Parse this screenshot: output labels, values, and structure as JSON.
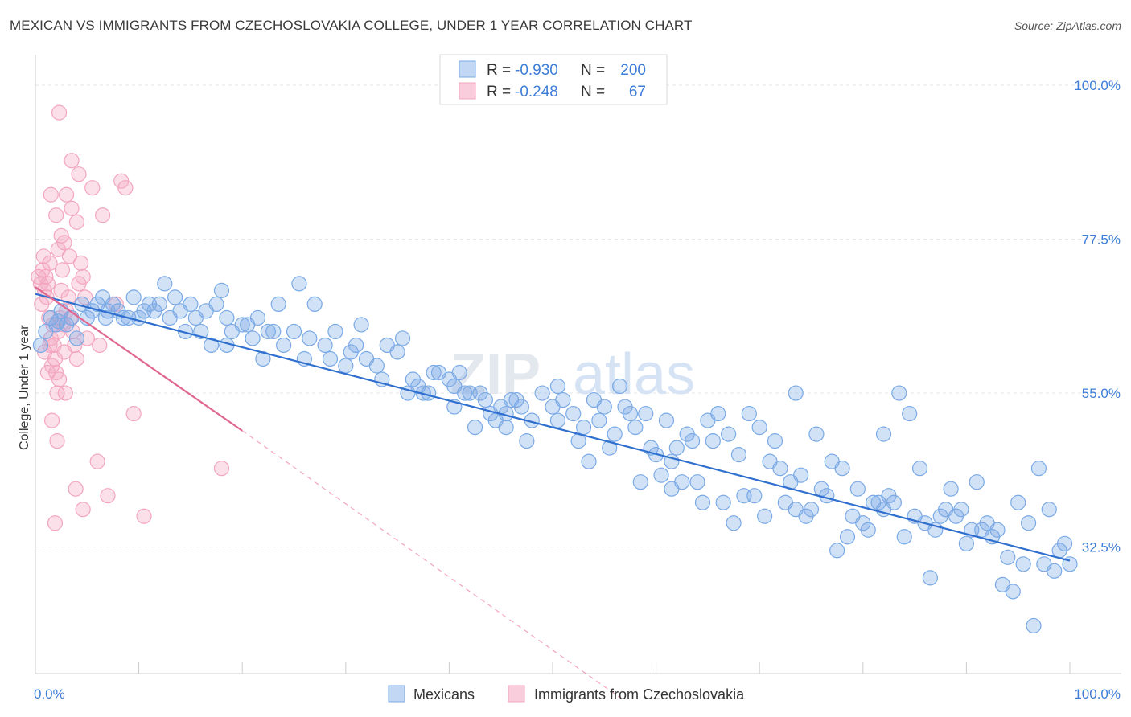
{
  "title": "MEXICAN VS IMMIGRANTS FROM CZECHOSLOVAKIA COLLEGE, UNDER 1 YEAR CORRELATION CHART",
  "source": "Source: ZipAtlas.com",
  "watermark": {
    "zip": "ZIP",
    "atlas": "atlas"
  },
  "chart_data": {
    "type": "scatter",
    "title": "MEXICAN VS IMMIGRANTS FROM CZECHOSLOVAKIA COLLEGE, UNDER 1 YEAR CORRELATION CHART",
    "xlabel": "",
    "ylabel": "College, Under 1 year",
    "xlim": [
      0,
      100
    ],
    "ylim": [
      14,
      104
    ],
    "x_ticks_labels": [
      "0.0%",
      "100.0%"
    ],
    "y_ticks": [
      32.5,
      55.0,
      77.5,
      100.0
    ],
    "y_ticks_labels": [
      "32.5%",
      "55.0%",
      "77.5%",
      "100.0%"
    ],
    "grid": true,
    "legend_placement": "top-center",
    "colors": {
      "mexicans": "#7aaae6",
      "mexicans_line": "#2f6fce",
      "czech": "#f3a6bf",
      "czech_line": "#e0678f",
      "tick": "#3d7dd8"
    },
    "legend": [
      {
        "r_label": "R = ",
        "r_value": "-0.930",
        "n_label": "N = ",
        "n_value": "200"
      },
      {
        "r_label": "R = ",
        "r_value": "-0.248",
        "n_label": "N = ",
        "n_value": "67"
      }
    ],
    "series": [
      {
        "name": "Mexicans",
        "trend": {
          "x": [
            0,
            100
          ],
          "y": [
            69.5,
            30.5
          ]
        },
        "points": [
          [
            0.5,
            62
          ],
          [
            1,
            64
          ],
          [
            1.5,
            66
          ],
          [
            2,
            65
          ],
          [
            2.5,
            67
          ],
          [
            3,
            65
          ],
          [
            3.5,
            66
          ],
          [
            4,
            63
          ],
          [
            4.5,
            68
          ],
          [
            5,
            66
          ],
          [
            5.5,
            67
          ],
          [
            6,
            68
          ],
          [
            6.5,
            69
          ],
          [
            7,
            67
          ],
          [
            7.5,
            68
          ],
          [
            8,
            67
          ],
          [
            8.5,
            66
          ],
          [
            9,
            66
          ],
          [
            10,
            66
          ],
          [
            10.5,
            67
          ],
          [
            11,
            68
          ],
          [
            12,
            68
          ],
          [
            12.5,
            71
          ],
          [
            13,
            66
          ],
          [
            13.5,
            69
          ],
          [
            14,
            67
          ],
          [
            15,
            68
          ],
          [
            15.5,
            66
          ],
          [
            16,
            64
          ],
          [
            17,
            62
          ],
          [
            17.5,
            68
          ],
          [
            18,
            70
          ],
          [
            18.5,
            66
          ],
          [
            19,
            64
          ],
          [
            20,
            65
          ],
          [
            20.5,
            65
          ],
          [
            21,
            63
          ],
          [
            22,
            60
          ],
          [
            22.5,
            64
          ],
          [
            23,
            64
          ],
          [
            24,
            62
          ],
          [
            25,
            64
          ],
          [
            25.5,
            71
          ],
          [
            26,
            60
          ],
          [
            27,
            68
          ],
          [
            28,
            62
          ],
          [
            29,
            64
          ],
          [
            30,
            59
          ],
          [
            30.5,
            61
          ],
          [
            31,
            62
          ],
          [
            32,
            60
          ],
          [
            33,
            59
          ],
          [
            34,
            62
          ],
          [
            35,
            61
          ],
          [
            36,
            55
          ],
          [
            36.5,
            57
          ],
          [
            37,
            56
          ],
          [
            38,
            55
          ],
          [
            38.5,
            58
          ],
          [
            39,
            58
          ],
          [
            40,
            57
          ],
          [
            40.5,
            56
          ],
          [
            41,
            58
          ],
          [
            42,
            55
          ],
          [
            43,
            55
          ],
          [
            44,
            52
          ],
          [
            44.5,
            51
          ],
          [
            45,
            53
          ],
          [
            46,
            54
          ],
          [
            47,
            53
          ],
          [
            48,
            51
          ],
          [
            49,
            55
          ],
          [
            50,
            53
          ],
          [
            50.5,
            51
          ],
          [
            51,
            54
          ],
          [
            52,
            52
          ],
          [
            53,
            50
          ],
          [
            54,
            54
          ],
          [
            55,
            53
          ],
          [
            56,
            49
          ],
          [
            57,
            53
          ],
          [
            57.5,
            52
          ],
          [
            58,
            50
          ],
          [
            59,
            52
          ],
          [
            60,
            46
          ],
          [
            61,
            51
          ],
          [
            62,
            47
          ],
          [
            63,
            49
          ],
          [
            64,
            42
          ],
          [
            65,
            51
          ],
          [
            66,
            52
          ],
          [
            67,
            49
          ],
          [
            68,
            46
          ],
          [
            69,
            52
          ],
          [
            70,
            50
          ],
          [
            71,
            45
          ],
          [
            72,
            44
          ],
          [
            73,
            42
          ],
          [
            74,
            43
          ],
          [
            75,
            38
          ],
          [
            76,
            41
          ],
          [
            77,
            45
          ],
          [
            78,
            44
          ],
          [
            79,
            37
          ],
          [
            80,
            36
          ],
          [
            81,
            39
          ],
          [
            82,
            38
          ],
          [
            83,
            39
          ],
          [
            84,
            34
          ],
          [
            85,
            37
          ],
          [
            86,
            36
          ],
          [
            87,
            35
          ],
          [
            88,
            38
          ],
          [
            89,
            37
          ],
          [
            90,
            33
          ],
          [
            91,
            42
          ],
          [
            92,
            36
          ],
          [
            93,
            35
          ],
          [
            94,
            31
          ],
          [
            95,
            39
          ],
          [
            96,
            36
          ],
          [
            97,
            44
          ],
          [
            98,
            38
          ],
          [
            99,
            32
          ],
          [
            100,
            30
          ],
          [
            2.2,
            65.5
          ],
          [
            6.8,
            66
          ],
          [
            9.5,
            69
          ],
          [
            11.5,
            67
          ],
          [
            14.5,
            64
          ],
          [
            16.5,
            67
          ],
          [
            18.5,
            62
          ],
          [
            21.5,
            66
          ],
          [
            23.5,
            68
          ],
          [
            26.5,
            63
          ],
          [
            28.5,
            60
          ],
          [
            31.5,
            65
          ],
          [
            33.5,
            57
          ],
          [
            35.5,
            63
          ],
          [
            37.5,
            55
          ],
          [
            41.5,
            55
          ],
          [
            42.5,
            50
          ],
          [
            43.5,
            54
          ],
          [
            45.5,
            50
          ],
          [
            46.5,
            54
          ],
          [
            47.5,
            48
          ],
          [
            52.5,
            48
          ],
          [
            53.5,
            45
          ],
          [
            54.5,
            51
          ],
          [
            55.5,
            47
          ],
          [
            56.5,
            56
          ],
          [
            58.5,
            42
          ],
          [
            59.5,
            47
          ],
          [
            60.5,
            43
          ],
          [
            61.5,
            41
          ],
          [
            62.5,
            42
          ],
          [
            63.5,
            48
          ],
          [
            64.5,
            39
          ],
          [
            65.5,
            48
          ],
          [
            66.5,
            39
          ],
          [
            67.5,
            36
          ],
          [
            68.5,
            40
          ],
          [
            69.5,
            40
          ],
          [
            70.5,
            37
          ],
          [
            71.5,
            48
          ],
          [
            72.5,
            39
          ],
          [
            73.5,
            38
          ],
          [
            74.5,
            37
          ],
          [
            75.5,
            49
          ],
          [
            76.5,
            40
          ],
          [
            77.5,
            32
          ],
          [
            78.5,
            34
          ],
          [
            79.5,
            41
          ],
          [
            80.5,
            35
          ],
          [
            81.5,
            39
          ],
          [
            82.5,
            40
          ],
          [
            83.5,
            55
          ],
          [
            84.5,
            52
          ],
          [
            85.5,
            44
          ],
          [
            86.5,
            28
          ],
          [
            87.5,
            37
          ],
          [
            88.5,
            41
          ],
          [
            89.5,
            38
          ],
          [
            90.5,
            35
          ],
          [
            91.5,
            35
          ],
          [
            92.5,
            34
          ],
          [
            93.5,
            27
          ],
          [
            94.5,
            26
          ],
          [
            95.5,
            30
          ],
          [
            96.5,
            21
          ],
          [
            97.5,
            30
          ],
          [
            98.5,
            29
          ],
          [
            99.5,
            33
          ],
          [
            40.5,
            53
          ],
          [
            45.5,
            52
          ],
          [
            50.5,
            56
          ],
          [
            61.5,
            45
          ],
          [
            73.5,
            55
          ],
          [
            82,
            49
          ]
        ]
      },
      {
        "name": "Immigrants from Czechoslovakia",
        "trend": {
          "x": [
            0,
            20
          ],
          "y": [
            70.5,
            49.5
          ]
        },
        "trend_extension": {
          "x": [
            20,
            56.5
          ],
          "y": [
            49.5,
            10.5
          ]
        },
        "points": [
          [
            0.3,
            72
          ],
          [
            0.5,
            71
          ],
          [
            0.6,
            68
          ],
          [
            0.7,
            73
          ],
          [
            0.8,
            75
          ],
          [
            0.9,
            70
          ],
          [
            1,
            72
          ],
          [
            1.1,
            69
          ],
          [
            1.2,
            71
          ],
          [
            1.3,
            66
          ],
          [
            1.4,
            74
          ],
          [
            1.5,
            63
          ],
          [
            1.6,
            59
          ],
          [
            1.7,
            65
          ],
          [
            1.8,
            62
          ],
          [
            1.9,
            60
          ],
          [
            2,
            58
          ],
          [
            2.1,
            55
          ],
          [
            2.2,
            64
          ],
          [
            2.3,
            57
          ],
          [
            2.4,
            66
          ],
          [
            2.5,
            70
          ],
          [
            2.6,
            73
          ],
          [
            2.7,
            65
          ],
          [
            2.8,
            61
          ],
          [
            2.9,
            55
          ],
          [
            3,
            67
          ],
          [
            3.2,
            69
          ],
          [
            3.4,
            66
          ],
          [
            3.6,
            64
          ],
          [
            3.8,
            62
          ],
          [
            4,
            60
          ],
          [
            4.2,
            71
          ],
          [
            4.4,
            74
          ],
          [
            4.6,
            72
          ],
          [
            4.8,
            69
          ],
          [
            5,
            63
          ],
          [
            1.5,
            84
          ],
          [
            2,
            81
          ],
          [
            2.5,
            78
          ],
          [
            3,
            84
          ],
          [
            3.5,
            82
          ],
          [
            4,
            80
          ],
          [
            2.2,
            76
          ],
          [
            2.8,
            77
          ],
          [
            3.3,
            75
          ],
          [
            2.1,
            48
          ],
          [
            3.9,
            41
          ],
          [
            4.6,
            38
          ],
          [
            6,
            45
          ],
          [
            7,
            40
          ],
          [
            9.5,
            52
          ],
          [
            10.5,
            37
          ],
          [
            18,
            44
          ],
          [
            1.6,
            51
          ],
          [
            1.9,
            36
          ],
          [
            2.3,
            96
          ],
          [
            3.5,
            89
          ],
          [
            4.2,
            87
          ],
          [
            5.5,
            85
          ],
          [
            6.5,
            81
          ],
          [
            8.3,
            86
          ],
          [
            8.7,
            85
          ],
          [
            0.9,
            61
          ],
          [
            1.2,
            58
          ],
          [
            1.4,
            62
          ],
          [
            7.8,
            68
          ],
          [
            6.2,
            62
          ]
        ]
      }
    ]
  },
  "bottom_legend": [
    {
      "label": "Mexicans"
    },
    {
      "label": "Immigrants from Czechoslovakia"
    }
  ]
}
